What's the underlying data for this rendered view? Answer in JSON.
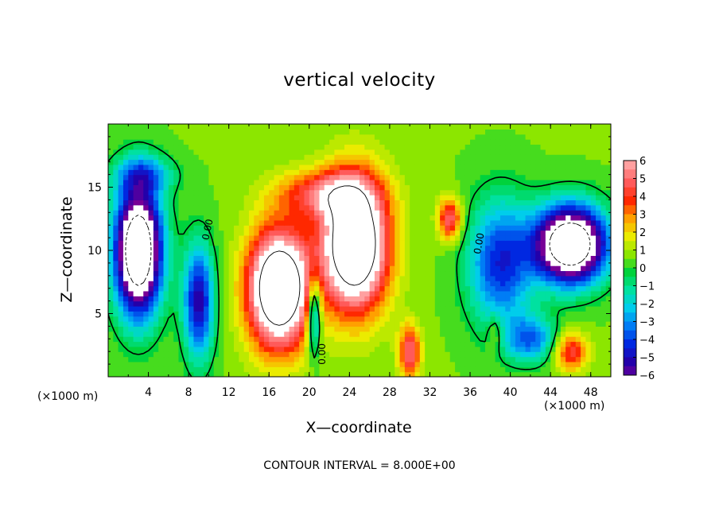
{
  "chart_data": {
    "type": "heatmap",
    "title": "vertical velocity",
    "xlabel": "X—coordinate",
    "ylabel": "Z—coordinate",
    "x_unit_left": "(×1000 m)",
    "x_unit_right": "(×1000 m)",
    "xlim": [
      0,
      50
    ],
    "ylim": [
      0,
      20
    ],
    "x_ticks": [
      "4",
      "8",
      "12",
      "16",
      "20",
      "24",
      "28",
      "32",
      "36",
      "40",
      "44",
      "48"
    ],
    "y_ticks": [
      "5",
      "10",
      "15"
    ],
    "colorbar": {
      "range": [
        -6,
        6
      ],
      "labels": [
        "6",
        "5",
        "4",
        "3",
        "2",
        "1",
        "0",
        "−1",
        "−2",
        "−3",
        "−4",
        "−5",
        "−6"
      ]
    },
    "contour_labels": [
      "0.00",
      "0.00",
      "0.00"
    ],
    "footer": "CONTOUR INTERVAL = 8.000E+00",
    "grid": false,
    "features": [
      {
        "kind": "updraft",
        "x": 17.0,
        "z": 7.0,
        "sx": 3.0,
        "sz": 4.5,
        "a": 11
      },
      {
        "kind": "updraft",
        "x": 24.5,
        "z": 10.5,
        "sx": 3.2,
        "sz": 5.0,
        "a": 11
      },
      {
        "kind": "updraft",
        "x": 21.5,
        "z": 14.5,
        "sx": 4.5,
        "sz": 1.8,
        "a": 4
      },
      {
        "kind": "updraft",
        "x": 30.0,
        "z": 2.0,
        "sx": 1.0,
        "sz": 2.0,
        "a": 5
      },
      {
        "kind": "updraft",
        "x": 34.0,
        "z": 12.5,
        "sx": 1.1,
        "sz": 1.6,
        "a": 5
      },
      {
        "kind": "updraft",
        "x": 46.0,
        "z": 2.0,
        "sx": 1.6,
        "sz": 1.5,
        "a": 4
      },
      {
        "kind": "updraft",
        "x": 38.5,
        "z": 3.5,
        "sx": 0.7,
        "sz": 1.5,
        "a": 2
      },
      {
        "kind": "downdraft",
        "x": 3.0,
        "z": 10.0,
        "sx": 2.3,
        "sz": 5.0,
        "a": -12
      },
      {
        "kind": "downdraft",
        "x": 46.0,
        "z": 10.5,
        "sx": 3.5,
        "sz": 3.0,
        "a": -12
      },
      {
        "kind": "downdraft",
        "x": 9.0,
        "z": 6.0,
        "sx": 1.5,
        "sz": 4.5,
        "a": -6
      },
      {
        "kind": "downdraft",
        "x": 39.0,
        "z": 9.0,
        "sx": 3.2,
        "sz": 5.0,
        "a": -5
      },
      {
        "kind": "downdraft",
        "x": 20.5,
        "z": 5.0,
        "sx": 0.6,
        "sz": 3.0,
        "a": -6
      },
      {
        "kind": "downdraft",
        "x": 42.0,
        "z": 3.0,
        "sx": 2.5,
        "sz": 1.8,
        "a": -4
      },
      {
        "kind": "downdraft",
        "x": 3.5,
        "z": 16.0,
        "sx": 3.0,
        "sz": 1.5,
        "a": -3
      }
    ]
  }
}
